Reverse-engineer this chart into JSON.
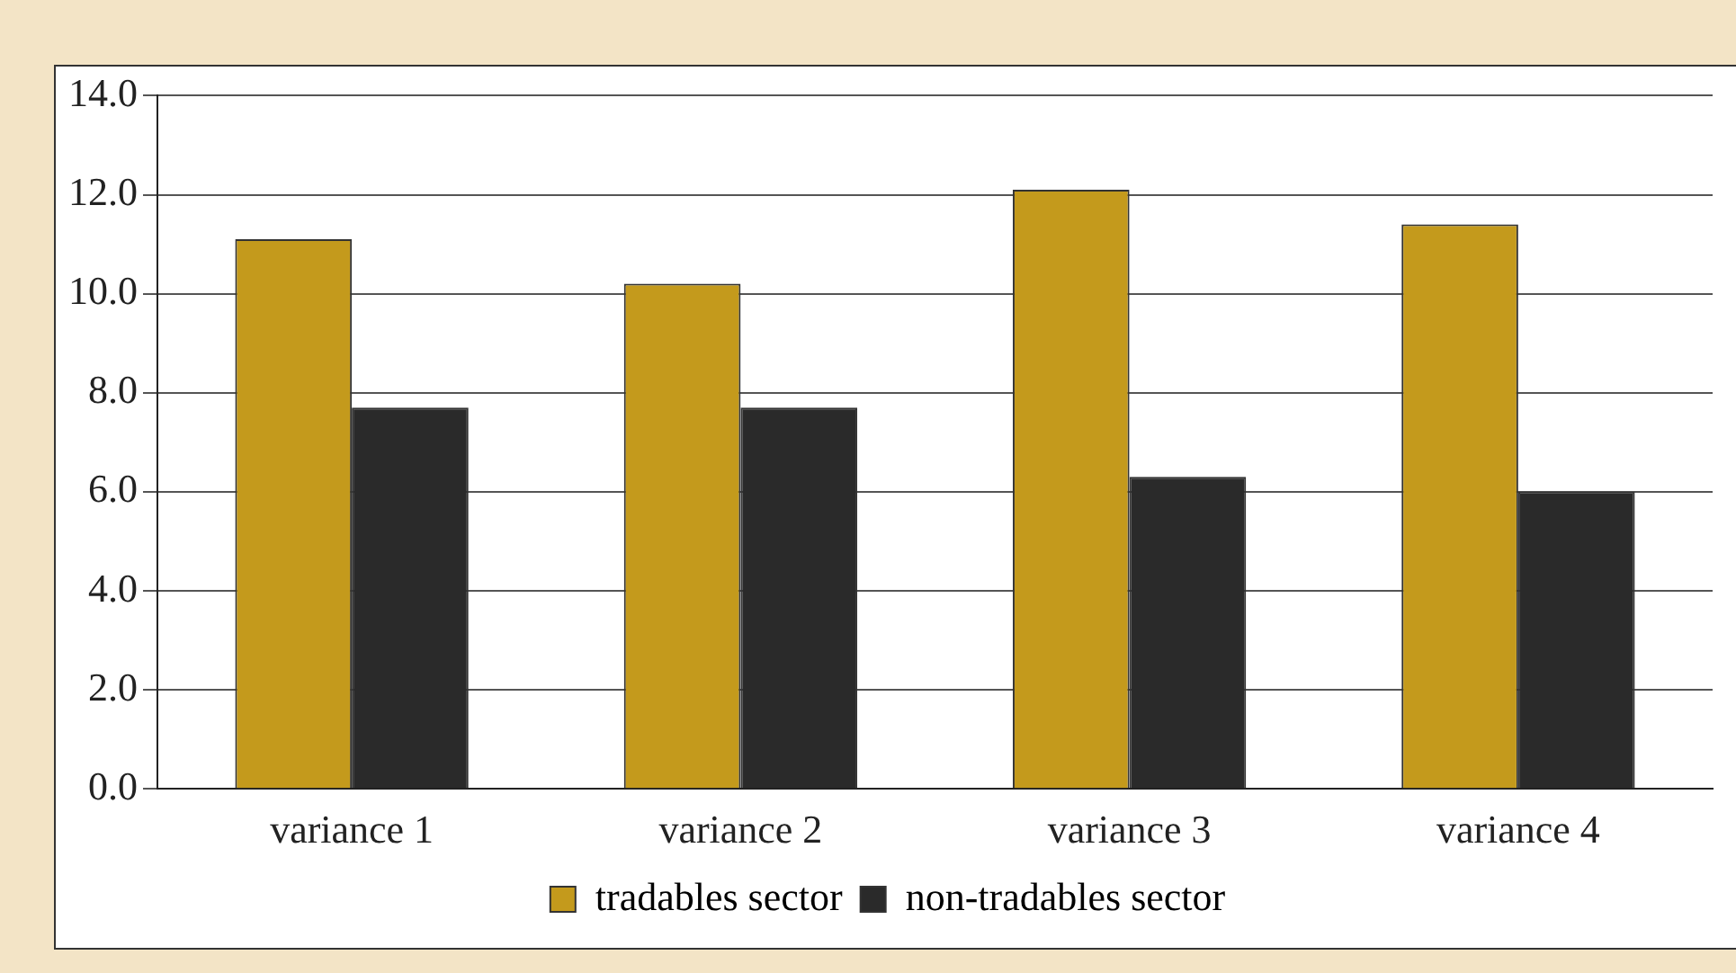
{
  "chart_data": {
    "type": "bar",
    "categories": [
      "variance 1",
      "variance 2",
      "variance 3",
      "variance 4"
    ],
    "series": [
      {
        "name": "tradables sector",
        "color": "#c49a1c",
        "values": [
          11.1,
          10.2,
          12.1,
          11.4
        ]
      },
      {
        "name": "non-tradables sector",
        "color": "#2a2a2a",
        "values": [
          7.7,
          7.7,
          6.3,
          6.0
        ]
      }
    ],
    "ylim": [
      0,
      14
    ],
    "yticks": [
      {
        "value": 0,
        "label": "0.0"
      },
      {
        "value": 2,
        "label": "2.0"
      },
      {
        "value": 4,
        "label": "4.0"
      },
      {
        "value": 6,
        "label": "6.0"
      },
      {
        "value": 8,
        "label": "8.0"
      },
      {
        "value": 10,
        "label": "10.0"
      },
      {
        "value": 12,
        "label": "12.0"
      },
      {
        "value": 14,
        "label": "14.0"
      }
    ],
    "grid": "y",
    "legend": "bottom"
  }
}
